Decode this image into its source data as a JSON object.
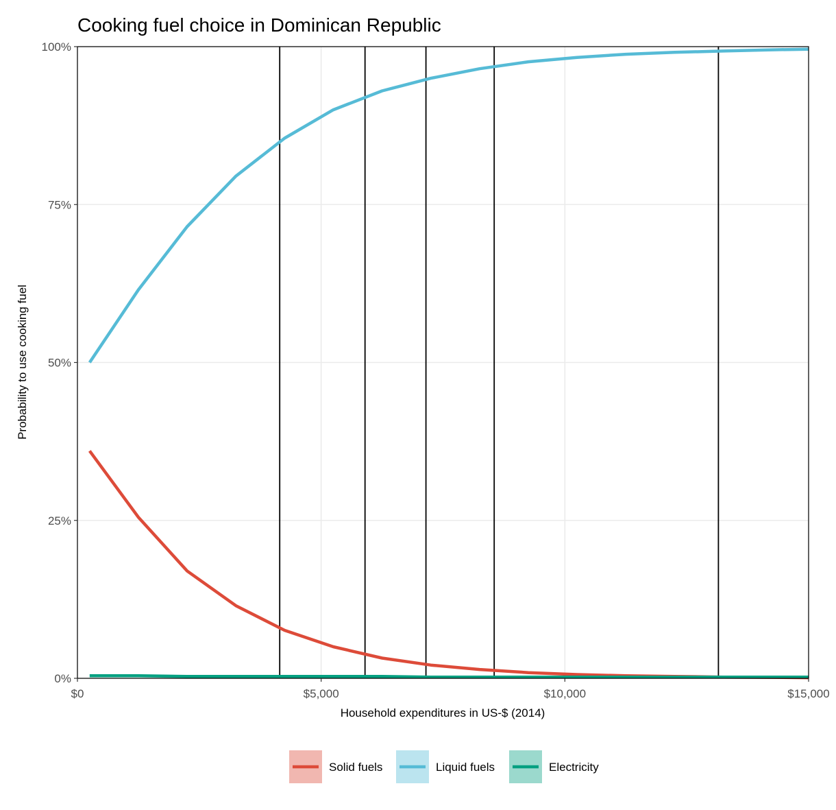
{
  "chart_data": {
    "type": "line",
    "title": "Cooking fuel choice in Dominican Republic",
    "xlabel": "Household expenditures in US-$ (2014)",
    "ylabel": "Probability to use cooking fuel",
    "xlim": [
      0,
      15000
    ],
    "ylim": [
      0,
      1
    ],
    "x_ticks": [
      {
        "value": 0,
        "label": "$0"
      },
      {
        "value": 5000,
        "label": "$5,000"
      },
      {
        "value": 10000,
        "label": "$10,000"
      },
      {
        "value": 15000,
        "label": "$15,000"
      }
    ],
    "y_ticks": [
      {
        "value": 0,
        "label": "0%"
      },
      {
        "value": 0.25,
        "label": "25%"
      },
      {
        "value": 0.5,
        "label": "50%"
      },
      {
        "value": 0.75,
        "label": "75%"
      },
      {
        "value": 1,
        "label": "100%"
      }
    ],
    "grid": true,
    "vertical_lines": [
      4150,
      5900,
      7150,
      8550,
      13150
    ],
    "legend_position": "bottom",
    "x": [
      250,
      1250,
      2250,
      3250,
      4250,
      5250,
      6250,
      7250,
      8250,
      9250,
      10250,
      11250,
      12250,
      13250,
      14250,
      15000
    ],
    "series": [
      {
        "name": "Solid fuels",
        "color": "#DD4B39",
        "values": [
          0.36,
          0.255,
          0.17,
          0.115,
          0.076,
          0.05,
          0.032,
          0.021,
          0.014,
          0.009,
          0.006,
          0.004,
          0.003,
          0.002,
          0.0015,
          0.001
        ]
      },
      {
        "name": "Liquid fuels",
        "color": "#56BBD6",
        "values": [
          0.5,
          0.615,
          0.715,
          0.795,
          0.855,
          0.9,
          0.93,
          0.95,
          0.965,
          0.976,
          0.983,
          0.988,
          0.991,
          0.993,
          0.995,
          0.996
        ]
      },
      {
        "name": "Electricity",
        "color": "#05A081",
        "values": [
          0.004,
          0.004,
          0.003,
          0.003,
          0.003,
          0.003,
          0.003,
          0.002,
          0.002,
          0.002,
          0.002,
          0.002,
          0.002,
          0.002,
          0.002,
          0.002
        ]
      }
    ]
  }
}
